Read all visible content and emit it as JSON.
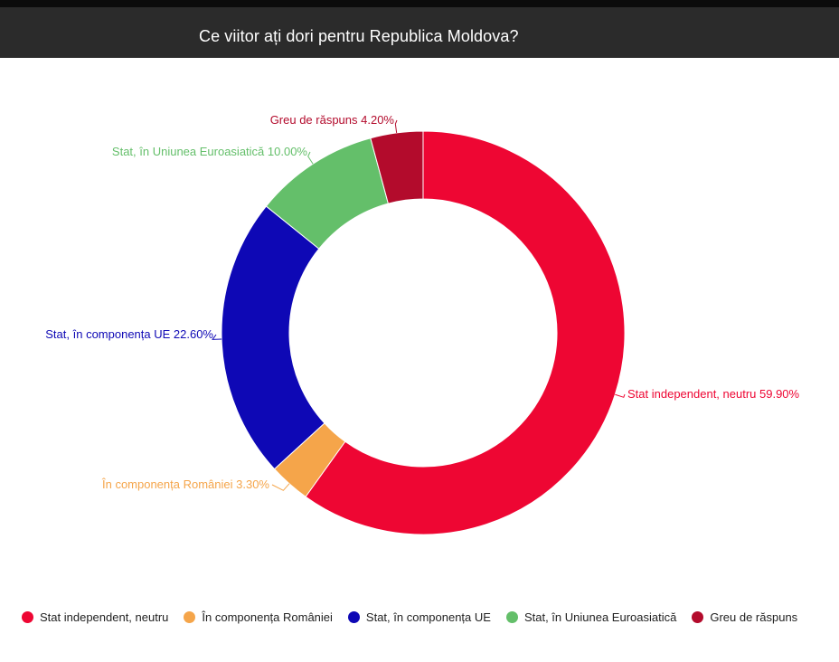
{
  "header": {
    "title": "Ce viitor ați dori pentru Republica Moldova?"
  },
  "chart_data": {
    "type": "pie",
    "variant": "donut",
    "start_angle_deg": 0,
    "direction": "clockwise",
    "legend_position": "bottom",
    "slices": [
      {
        "label": "Stat independent, neutru",
        "value": 59.9,
        "value_label": "Stat independent, neutru 59.90%",
        "color": "#ee0633"
      },
      {
        "label": "În componența României",
        "value": 3.3,
        "value_label": "În componența României 3.30%",
        "color": "#f5a54a"
      },
      {
        "label": "Stat, în componența UE",
        "value": 22.6,
        "value_label": "Stat, în componența UE 22.60%",
        "color": "#0e08b5"
      },
      {
        "label": "Stat, în Uniunea Euroasiatică",
        "value": 10.0,
        "value_label": "Stat, în Uniunea Euroasiatică 10.00%",
        "color": "#64bf6a"
      },
      {
        "label": "Greu de răspuns",
        "value": 4.2,
        "value_label": "Greu de răspuns 4.20%",
        "color": "#b30b2c"
      }
    ]
  }
}
